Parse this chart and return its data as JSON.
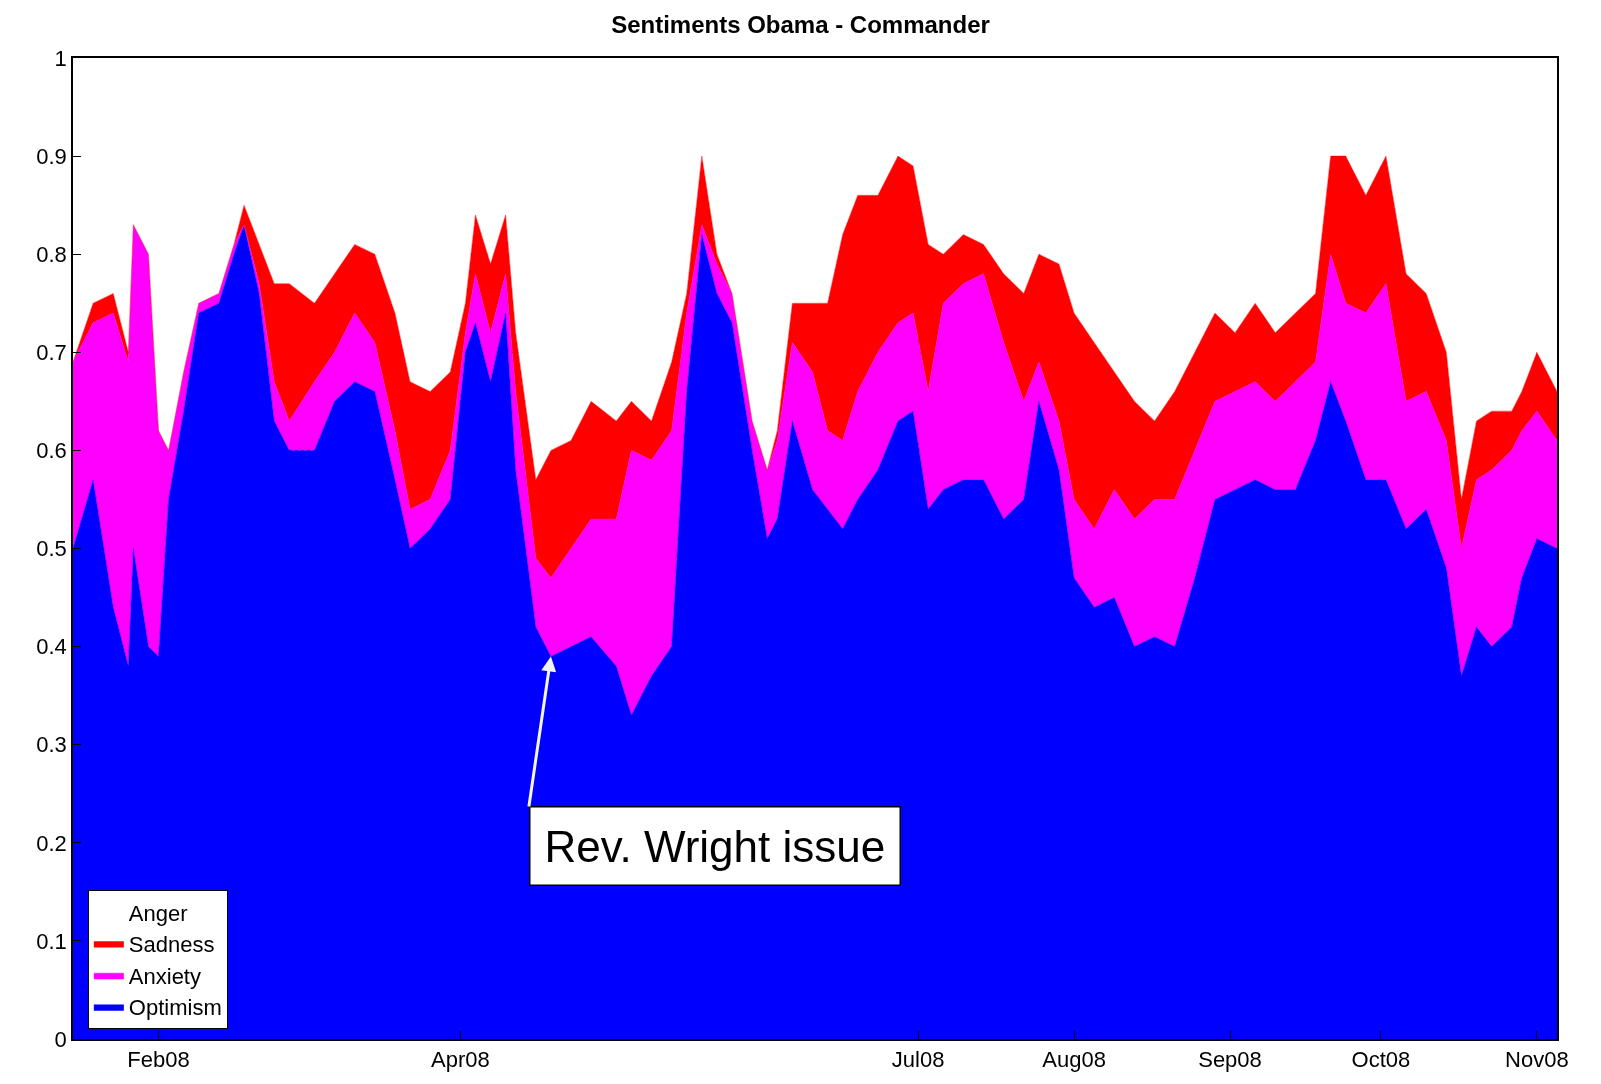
{
  "chart_data": {
    "type": "area",
    "title": "Sentiments Obama - Commander",
    "stacked": true,
    "grid": true,
    "legend": "bottom left",
    "x": [
      "2008-01-15",
      "2008-01-19",
      "2008-01-23",
      "2008-01-26",
      "2008-01-27",
      "2008-01-30",
      "2008-02-01",
      "2008-02-03",
      "2008-02-06",
      "2008-02-09",
      "2008-02-13",
      "2008-02-16",
      "2008-02-18",
      "2008-02-21",
      "2008-02-24",
      "2008-02-27",
      "2008-03-03",
      "2008-03-07",
      "2008-03-11",
      "2008-03-15",
      "2008-03-19",
      "2008-03-22",
      "2008-03-26",
      "2008-03-30",
      "2008-04-02",
      "2008-04-04",
      "2008-04-07",
      "2008-04-10",
      "2008-04-12",
      "2008-04-16",
      "2008-04-19",
      "2008-04-23",
      "2008-04-27",
      "2008-05-02",
      "2008-05-05",
      "2008-05-09",
      "2008-05-13",
      "2008-05-16",
      "2008-05-19",
      "2008-05-22",
      "2008-05-25",
      "2008-05-29",
      "2008-06-01",
      "2008-06-03",
      "2008-06-06",
      "2008-06-10",
      "2008-06-13",
      "2008-06-16",
      "2008-06-19",
      "2008-06-23",
      "2008-06-27",
      "2008-06-30",
      "2008-07-03",
      "2008-07-06",
      "2008-07-10",
      "2008-07-14",
      "2008-07-18",
      "2008-07-22",
      "2008-07-25",
      "2008-07-29",
      "2008-08-01",
      "2008-08-05",
      "2008-08-09",
      "2008-08-13",
      "2008-08-17",
      "2008-08-21",
      "2008-08-25",
      "2008-08-29",
      "2008-09-02",
      "2008-09-06",
      "2008-09-10",
      "2008-09-14",
      "2008-09-18",
      "2008-09-21",
      "2008-09-24",
      "2008-09-28",
      "2008-10-02",
      "2008-10-06",
      "2008-10-10",
      "2008-10-14",
      "2008-10-17",
      "2008-10-20",
      "2008-10-23",
      "2008-10-27",
      "2008-10-29",
      "2008-11-01",
      "2008-11-05"
    ],
    "series": [
      {
        "name": "Optimism",
        "color": "#0000ff",
        "values": [
          0.5,
          0.57,
          0.44,
          0.38,
          0.5,
          0.4,
          0.39,
          0.55,
          0.64,
          0.74,
          0.75,
          0.8,
          0.83,
          0.76,
          0.63,
          0.6,
          0.6,
          0.65,
          0.67,
          0.66,
          0.57,
          0.5,
          0.52,
          0.55,
          0.7,
          0.73,
          0.67,
          0.74,
          0.58,
          0.42,
          0.39,
          0.4,
          0.41,
          0.38,
          0.33,
          0.37,
          0.4,
          0.66,
          0.82,
          0.76,
          0.73,
          0.6,
          0.51,
          0.53,
          0.63,
          0.56,
          0.54,
          0.52,
          0.55,
          0.58,
          0.63,
          0.64,
          0.54,
          0.56,
          0.57,
          0.57,
          0.53,
          0.55,
          0.65,
          0.58,
          0.47,
          0.44,
          0.45,
          0.4,
          0.41,
          0.4,
          0.47,
          0.55,
          0.56,
          0.57,
          0.56,
          0.56,
          0.61,
          0.67,
          0.63,
          0.57,
          0.57,
          0.52,
          0.54,
          0.48,
          0.37,
          0.42,
          0.4,
          0.42,
          0.47,
          0.51,
          0.5
        ]
      },
      {
        "name": "Anxiety",
        "color": "#ff00ff",
        "values": [
          0.19,
          0.16,
          0.3,
          0.31,
          0.33,
          0.4,
          0.23,
          0.05,
          0.04,
          0.01,
          0.01,
          0.01,
          0.0,
          0.01,
          0.04,
          0.03,
          0.07,
          0.05,
          0.07,
          0.05,
          0.05,
          0.04,
          0.03,
          0.05,
          0.02,
          0.05,
          0.05,
          0.04,
          0.08,
          0.07,
          0.08,
          0.1,
          0.12,
          0.15,
          0.27,
          0.22,
          0.22,
          0.08,
          0.01,
          0.03,
          0.03,
          0.03,
          0.07,
          0.08,
          0.08,
          0.12,
          0.08,
          0.09,
          0.11,
          0.12,
          0.1,
          0.1,
          0.12,
          0.19,
          0.2,
          0.21,
          0.18,
          0.1,
          0.04,
          0.05,
          0.08,
          0.08,
          0.11,
          0.13,
          0.14,
          0.15,
          0.13,
          0.1,
          0.1,
          0.1,
          0.09,
          0.11,
          0.08,
          0.13,
          0.12,
          0.17,
          0.2,
          0.13,
          0.12,
          0.13,
          0.13,
          0.15,
          0.18,
          0.18,
          0.15,
          0.13,
          0.11
        ]
      },
      {
        "name": "Sadness",
        "color": "#ff0000",
        "values": [
          0.0,
          0.02,
          0.02,
          0.01,
          0.0,
          0.0,
          0.0,
          0.0,
          0.0,
          0.0,
          0.0,
          0.0,
          0.02,
          0.04,
          0.1,
          0.14,
          0.08,
          0.08,
          0.07,
          0.09,
          0.12,
          0.13,
          0.11,
          0.08,
          0.03,
          0.06,
          0.07,
          0.06,
          0.06,
          0.08,
          0.13,
          0.11,
          0.12,
          0.1,
          0.05,
          0.04,
          0.07,
          0.02,
          0.07,
          0.01,
          0.0,
          0.0,
          0.0,
          0.01,
          0.04,
          0.07,
          0.13,
          0.21,
          0.2,
          0.16,
          0.17,
          0.15,
          0.15,
          0.05,
          0.05,
          0.03,
          0.07,
          0.11,
          0.11,
          0.16,
          0.19,
          0.19,
          0.12,
          0.12,
          0.08,
          0.11,
          0.1,
          0.09,
          0.06,
          0.08,
          0.07,
          0.07,
          0.07,
          0.1,
          0.15,
          0.12,
          0.13,
          0.13,
          0.1,
          0.09,
          0.05,
          0.06,
          0.06,
          0.04,
          0.04,
          0.06,
          0.05
        ]
      },
      {
        "name": "Anger",
        "color": "#ffffff",
        "values": [
          0.31,
          0.25,
          0.24,
          0.3,
          0.17,
          0.2,
          0.38,
          0.4,
          0.32,
          0.25,
          0.24,
          0.19,
          0.15,
          0.19,
          0.23,
          0.23,
          0.25,
          0.22,
          0.19,
          0.2,
          0.26,
          0.33,
          0.34,
          0.32,
          0.25,
          0.16,
          0.21,
          0.16,
          0.28,
          0.43,
          0.4,
          0.39,
          0.35,
          0.37,
          0.35,
          0.37,
          0.31,
          0.24,
          0.1,
          0.2,
          0.24,
          0.37,
          0.42,
          0.38,
          0.25,
          0.25,
          0.25,
          0.18,
          0.14,
          0.14,
          0.1,
          0.11,
          0.19,
          0.2,
          0.18,
          0.19,
          0.22,
          0.24,
          0.2,
          0.21,
          0.26,
          0.29,
          0.32,
          0.35,
          0.37,
          0.34,
          0.3,
          0.26,
          0.28,
          0.25,
          0.28,
          0.26,
          0.24,
          0.1,
          0.1,
          0.14,
          0.1,
          0.22,
          0.24,
          0.3,
          0.45,
          0.37,
          0.36,
          0.36,
          0.34,
          0.3,
          0.34
        ]
      }
    ],
    "xlim": [
      "2008-01-15",
      "2008-11-05"
    ],
    "xticks": [
      {
        "value": "2008-02-01",
        "label": "Feb08"
      },
      {
        "value": "2008-04-01",
        "label": "Apr08"
      },
      {
        "value": "2008-07-01",
        "label": "Jul08"
      },
      {
        "value": "2008-08-01",
        "label": "Aug08"
      },
      {
        "value": "2008-09-01",
        "label": "Sep08"
      },
      {
        "value": "2008-10-01",
        "label": "Oct08"
      },
      {
        "value": "2008-11-01",
        "label": "Nov08"
      }
    ],
    "ylim": [
      0,
      1
    ],
    "yticks": [
      0,
      0.1,
      0.2,
      0.3,
      0.4,
      0.5,
      0.6,
      0.7,
      0.8,
      0.9,
      1
    ],
    "annotations": [
      {
        "text": "Rev. Wright issue",
        "x": "2008-04-19",
        "y": 0.39
      }
    ]
  }
}
